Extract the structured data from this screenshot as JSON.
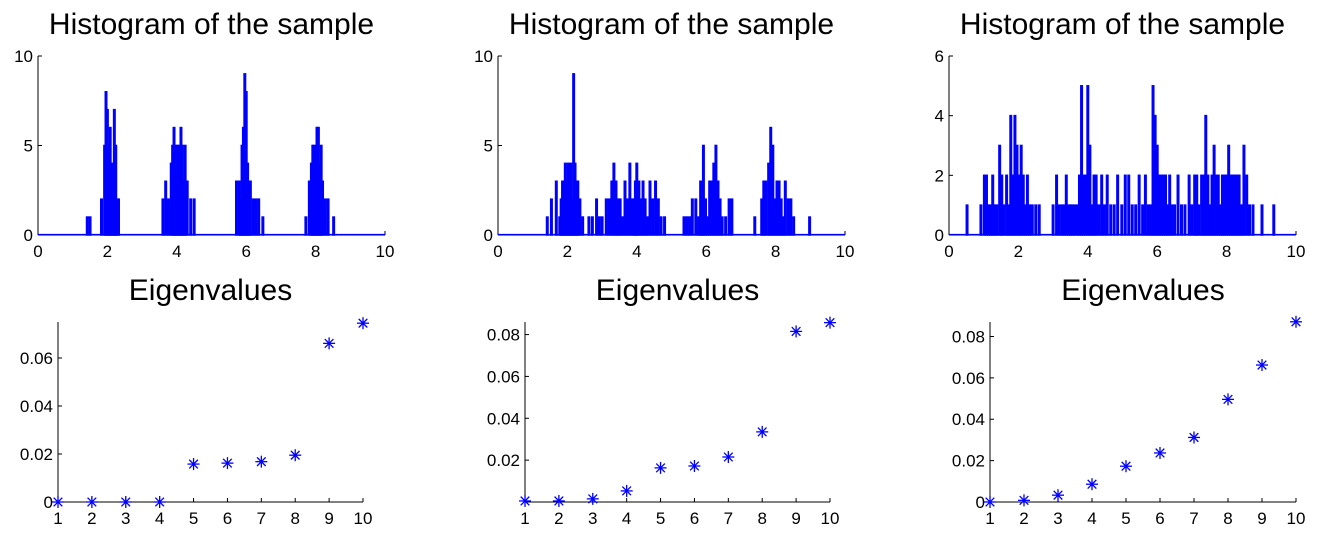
{
  "figure": {
    "mark_color": "#0000ff",
    "axis_color": "#000000",
    "background": "#ffffff"
  },
  "chart_data": [
    {
      "type": "bar",
      "role": "histogram",
      "title": "Histogram of the sample",
      "xlim": [
        0,
        10
      ],
      "ylim": [
        0,
        10
      ],
      "xticks": [
        0,
        2,
        4,
        6,
        8,
        10
      ],
      "yticks": [
        0,
        5,
        10
      ],
      "grid": false,
      "bars": [
        [
          1.42,
          1
        ],
        [
          1.5,
          1
        ],
        [
          1.83,
          2
        ],
        [
          1.92,
          5
        ],
        [
          1.96,
          8
        ],
        [
          2.0,
          7
        ],
        [
          2.04,
          5
        ],
        [
          2.08,
          6
        ],
        [
          2.12,
          4
        ],
        [
          2.16,
          3
        ],
        [
          2.2,
          7
        ],
        [
          2.24,
          5
        ],
        [
          2.28,
          2
        ],
        [
          2.32,
          2
        ],
        [
          3.6,
          2
        ],
        [
          3.68,
          3
        ],
        [
          3.76,
          2
        ],
        [
          3.84,
          4
        ],
        [
          3.88,
          5
        ],
        [
          3.92,
          6
        ],
        [
          3.96,
          4
        ],
        [
          4.0,
          5
        ],
        [
          4.04,
          5
        ],
        [
          4.08,
          4
        ],
        [
          4.12,
          6
        ],
        [
          4.16,
          5
        ],
        [
          4.2,
          3
        ],
        [
          4.24,
          5
        ],
        [
          4.3,
          3
        ],
        [
          4.4,
          2
        ],
        [
          4.5,
          2
        ],
        [
          5.72,
          3
        ],
        [
          5.8,
          3
        ],
        [
          5.84,
          2
        ],
        [
          5.88,
          5
        ],
        [
          5.92,
          6
        ],
        [
          5.96,
          9
        ],
        [
          6.0,
          8
        ],
        [
          6.04,
          4
        ],
        [
          6.08,
          3
        ],
        [
          6.12,
          3
        ],
        [
          6.2,
          2
        ],
        [
          6.28,
          2
        ],
        [
          6.36,
          2
        ],
        [
          6.48,
          1
        ],
        [
          7.72,
          1
        ],
        [
          7.82,
          3
        ],
        [
          7.88,
          4
        ],
        [
          7.92,
          5
        ],
        [
          7.96,
          5
        ],
        [
          8.0,
          4
        ],
        [
          8.04,
          6
        ],
        [
          8.08,
          6
        ],
        [
          8.12,
          4
        ],
        [
          8.16,
          5
        ],
        [
          8.2,
          3
        ],
        [
          8.28,
          2
        ],
        [
          8.36,
          2
        ],
        [
          8.52,
          1
        ]
      ]
    },
    {
      "type": "bar",
      "role": "histogram",
      "title": "Histogram of the sample",
      "xlim": [
        0,
        10
      ],
      "ylim": [
        0,
        10
      ],
      "xticks": [
        0,
        2,
        4,
        6,
        8,
        10
      ],
      "yticks": [
        0,
        5,
        10
      ],
      "grid": false,
      "bars": [
        [
          1.42,
          1
        ],
        [
          1.54,
          2
        ],
        [
          1.68,
          3
        ],
        [
          1.78,
          1
        ],
        [
          1.82,
          2
        ],
        [
          1.86,
          3
        ],
        [
          1.9,
          2
        ],
        [
          1.94,
          4
        ],
        [
          1.98,
          3
        ],
        [
          2.02,
          4
        ],
        [
          2.06,
          2
        ],
        [
          2.1,
          4
        ],
        [
          2.14,
          2
        ],
        [
          2.18,
          9
        ],
        [
          2.22,
          4
        ],
        [
          2.26,
          2
        ],
        [
          2.3,
          3
        ],
        [
          2.36,
          2
        ],
        [
          2.44,
          1
        ],
        [
          2.62,
          1
        ],
        [
          2.72,
          1
        ],
        [
          2.84,
          2
        ],
        [
          2.92,
          1
        ],
        [
          3.0,
          1
        ],
        [
          3.12,
          2
        ],
        [
          3.2,
          2
        ],
        [
          3.28,
          3
        ],
        [
          3.34,
          4
        ],
        [
          3.4,
          3
        ],
        [
          3.46,
          2
        ],
        [
          3.52,
          2
        ],
        [
          3.58,
          1
        ],
        [
          3.66,
          3
        ],
        [
          3.72,
          2
        ],
        [
          3.8,
          4
        ],
        [
          3.86,
          2
        ],
        [
          3.92,
          2
        ],
        [
          3.96,
          3
        ],
        [
          4.0,
          4
        ],
        [
          4.06,
          3
        ],
        [
          4.12,
          2
        ],
        [
          4.18,
          3
        ],
        [
          4.24,
          2
        ],
        [
          4.3,
          1
        ],
        [
          4.38,
          3
        ],
        [
          4.46,
          2
        ],
        [
          4.54,
          3
        ],
        [
          4.62,
          2
        ],
        [
          4.7,
          1
        ],
        [
          4.8,
          1
        ],
        [
          5.36,
          1
        ],
        [
          5.44,
          1
        ],
        [
          5.52,
          1
        ],
        [
          5.6,
          2
        ],
        [
          5.7,
          2
        ],
        [
          5.78,
          1
        ],
        [
          5.84,
          3
        ],
        [
          5.88,
          3
        ],
        [
          5.92,
          5
        ],
        [
          5.98,
          2
        ],
        [
          6.04,
          1
        ],
        [
          6.1,
          3
        ],
        [
          6.16,
          3
        ],
        [
          6.22,
          4
        ],
        [
          6.28,
          5
        ],
        [
          6.34,
          3
        ],
        [
          6.4,
          2
        ],
        [
          6.46,
          1
        ],
        [
          6.56,
          1
        ],
        [
          6.66,
          2
        ],
        [
          6.74,
          2
        ],
        [
          7.4,
          1
        ],
        [
          7.6,
          2
        ],
        [
          7.66,
          3
        ],
        [
          7.72,
          3
        ],
        [
          7.8,
          4
        ],
        [
          7.86,
          6
        ],
        [
          7.92,
          5
        ],
        [
          7.98,
          2
        ],
        [
          8.04,
          3
        ],
        [
          8.1,
          3
        ],
        [
          8.16,
          2
        ],
        [
          8.22,
          1
        ],
        [
          8.28,
          3
        ],
        [
          8.36,
          2
        ],
        [
          8.44,
          2
        ],
        [
          8.52,
          1
        ],
        [
          8.98,
          1
        ]
      ]
    },
    {
      "type": "bar",
      "role": "histogram",
      "title": "Histogram of the sample",
      "xlim": [
        0,
        10
      ],
      "ylim": [
        0,
        6
      ],
      "xticks": [
        0,
        2,
        4,
        6,
        8,
        10
      ],
      "yticks": [
        0,
        2,
        4,
        6
      ],
      "grid": false,
      "bars": [
        [
          0.52,
          1
        ],
        [
          0.92,
          1
        ],
        [
          1.02,
          2
        ],
        [
          1.08,
          2
        ],
        [
          1.14,
          1
        ],
        [
          1.2,
          1
        ],
        [
          1.26,
          2
        ],
        [
          1.32,
          1
        ],
        [
          1.38,
          1
        ],
        [
          1.46,
          3
        ],
        [
          1.52,
          2
        ],
        [
          1.58,
          1
        ],
        [
          1.66,
          2
        ],
        [
          1.72,
          1
        ],
        [
          1.78,
          4
        ],
        [
          1.84,
          2
        ],
        [
          1.9,
          4
        ],
        [
          1.96,
          3
        ],
        [
          2.02,
          2
        ],
        [
          2.08,
          3
        ],
        [
          2.14,
          2
        ],
        [
          2.2,
          1
        ],
        [
          2.26,
          2
        ],
        [
          2.32,
          1
        ],
        [
          2.4,
          1
        ],
        [
          2.5,
          1
        ],
        [
          2.6,
          1
        ],
        [
          3.0,
          1
        ],
        [
          3.1,
          2
        ],
        [
          3.18,
          1
        ],
        [
          3.26,
          1
        ],
        [
          3.32,
          1
        ],
        [
          3.38,
          2
        ],
        [
          3.44,
          1
        ],
        [
          3.5,
          1
        ],
        [
          3.56,
          1
        ],
        [
          3.62,
          1
        ],
        [
          3.7,
          1
        ],
        [
          3.76,
          2
        ],
        [
          3.82,
          5
        ],
        [
          3.88,
          2
        ],
        [
          3.94,
          2
        ],
        [
          4.0,
          5
        ],
        [
          4.06,
          3
        ],
        [
          4.12,
          1
        ],
        [
          4.18,
          2
        ],
        [
          4.24,
          2
        ],
        [
          4.32,
          1
        ],
        [
          4.4,
          2
        ],
        [
          4.48,
          1
        ],
        [
          4.56,
          2
        ],
        [
          4.66,
          1
        ],
        [
          4.76,
          1
        ],
        [
          4.86,
          2
        ],
        [
          4.98,
          1
        ],
        [
          5.08,
          2
        ],
        [
          5.18,
          2
        ],
        [
          5.28,
          1
        ],
        [
          5.38,
          1
        ],
        [
          5.48,
          2
        ],
        [
          5.58,
          1
        ],
        [
          5.66,
          2
        ],
        [
          5.74,
          1
        ],
        [
          5.82,
          1
        ],
        [
          5.88,
          5
        ],
        [
          5.94,
          4
        ],
        [
          6.0,
          3
        ],
        [
          6.06,
          2
        ],
        [
          6.12,
          2
        ],
        [
          6.18,
          2
        ],
        [
          6.24,
          2
        ],
        [
          6.3,
          1
        ],
        [
          6.36,
          2
        ],
        [
          6.42,
          1
        ],
        [
          6.5,
          1
        ],
        [
          6.6,
          2
        ],
        [
          6.7,
          1
        ],
        [
          6.8,
          1
        ],
        [
          6.92,
          2
        ],
        [
          7.0,
          1
        ],
        [
          7.08,
          2
        ],
        [
          7.14,
          2
        ],
        [
          7.2,
          1
        ],
        [
          7.28,
          2
        ],
        [
          7.34,
          2
        ],
        [
          7.4,
          4
        ],
        [
          7.46,
          2
        ],
        [
          7.52,
          1
        ],
        [
          7.58,
          2
        ],
        [
          7.64,
          3
        ],
        [
          7.7,
          2
        ],
        [
          7.76,
          2
        ],
        [
          7.82,
          1
        ],
        [
          7.88,
          2
        ],
        [
          7.94,
          2
        ],
        [
          8.0,
          2
        ],
        [
          8.06,
          3
        ],
        [
          8.12,
          2
        ],
        [
          8.18,
          2
        ],
        [
          8.24,
          2
        ],
        [
          8.3,
          2
        ],
        [
          8.36,
          2
        ],
        [
          8.42,
          1
        ],
        [
          8.5,
          3
        ],
        [
          8.58,
          2
        ],
        [
          8.66,
          1
        ],
        [
          8.76,
          1
        ],
        [
          9.02,
          1
        ],
        [
          9.36,
          1
        ]
      ]
    },
    {
      "type": "scatter",
      "role": "eigenvalues",
      "title": "Eigenvalues",
      "marker": "*",
      "xlim": [
        1,
        10
      ],
      "ylim": [
        0,
        0.075
      ],
      "xticks": [
        1,
        2,
        3,
        4,
        5,
        6,
        7,
        8,
        9,
        10
      ],
      "yticks": [
        0,
        0.02,
        0.04,
        0.06
      ],
      "ytick_labels": [
        "0",
        "0.02",
        "0.04",
        "0.06"
      ],
      "grid": false,
      "x": [
        1,
        2,
        3,
        4,
        5,
        6,
        7,
        8,
        9,
        10
      ],
      "y": [
        0,
        0,
        0,
        0,
        0.0158,
        0.0162,
        0.0168,
        0.0195,
        0.0661,
        0.0745
      ]
    },
    {
      "type": "scatter",
      "role": "eigenvalues",
      "title": "Eigenvalues",
      "marker": "*",
      "xlim": [
        1,
        10
      ],
      "ylim": [
        0,
        0.086
      ],
      "xticks": [
        1,
        2,
        3,
        4,
        5,
        6,
        7,
        8,
        9,
        10
      ],
      "yticks": [
        0.02,
        0.04,
        0.06,
        0.08
      ],
      "ytick_labels": [
        "0.02",
        "0.04",
        "0.06",
        "0.08"
      ],
      "grid": false,
      "x": [
        1,
        2,
        3,
        4,
        5,
        6,
        7,
        8,
        9,
        10
      ],
      "y": [
        0.0005,
        0.0005,
        0.0015,
        0.0053,
        0.0163,
        0.0172,
        0.0215,
        0.0335,
        0.0815,
        0.0857
      ]
    },
    {
      "type": "scatter",
      "role": "eigenvalues",
      "title": "Eigenvalues",
      "marker": "*",
      "xlim": [
        1,
        10
      ],
      "ylim": [
        0,
        0.087
      ],
      "xticks": [
        1,
        2,
        3,
        4,
        5,
        6,
        7,
        8,
        9,
        10
      ],
      "yticks": [
        0,
        0.02,
        0.04,
        0.06,
        0.08
      ],
      "ytick_labels": [
        "0",
        "0.02",
        "0.04",
        "0.06",
        "0.08"
      ],
      "grid": false,
      "x": [
        1,
        2,
        3,
        4,
        5,
        6,
        7,
        8,
        9,
        10
      ],
      "y": [
        0,
        0.0008,
        0.0033,
        0.0086,
        0.0173,
        0.0237,
        0.0312,
        0.0496,
        0.0662,
        0.0871
      ]
    }
  ]
}
